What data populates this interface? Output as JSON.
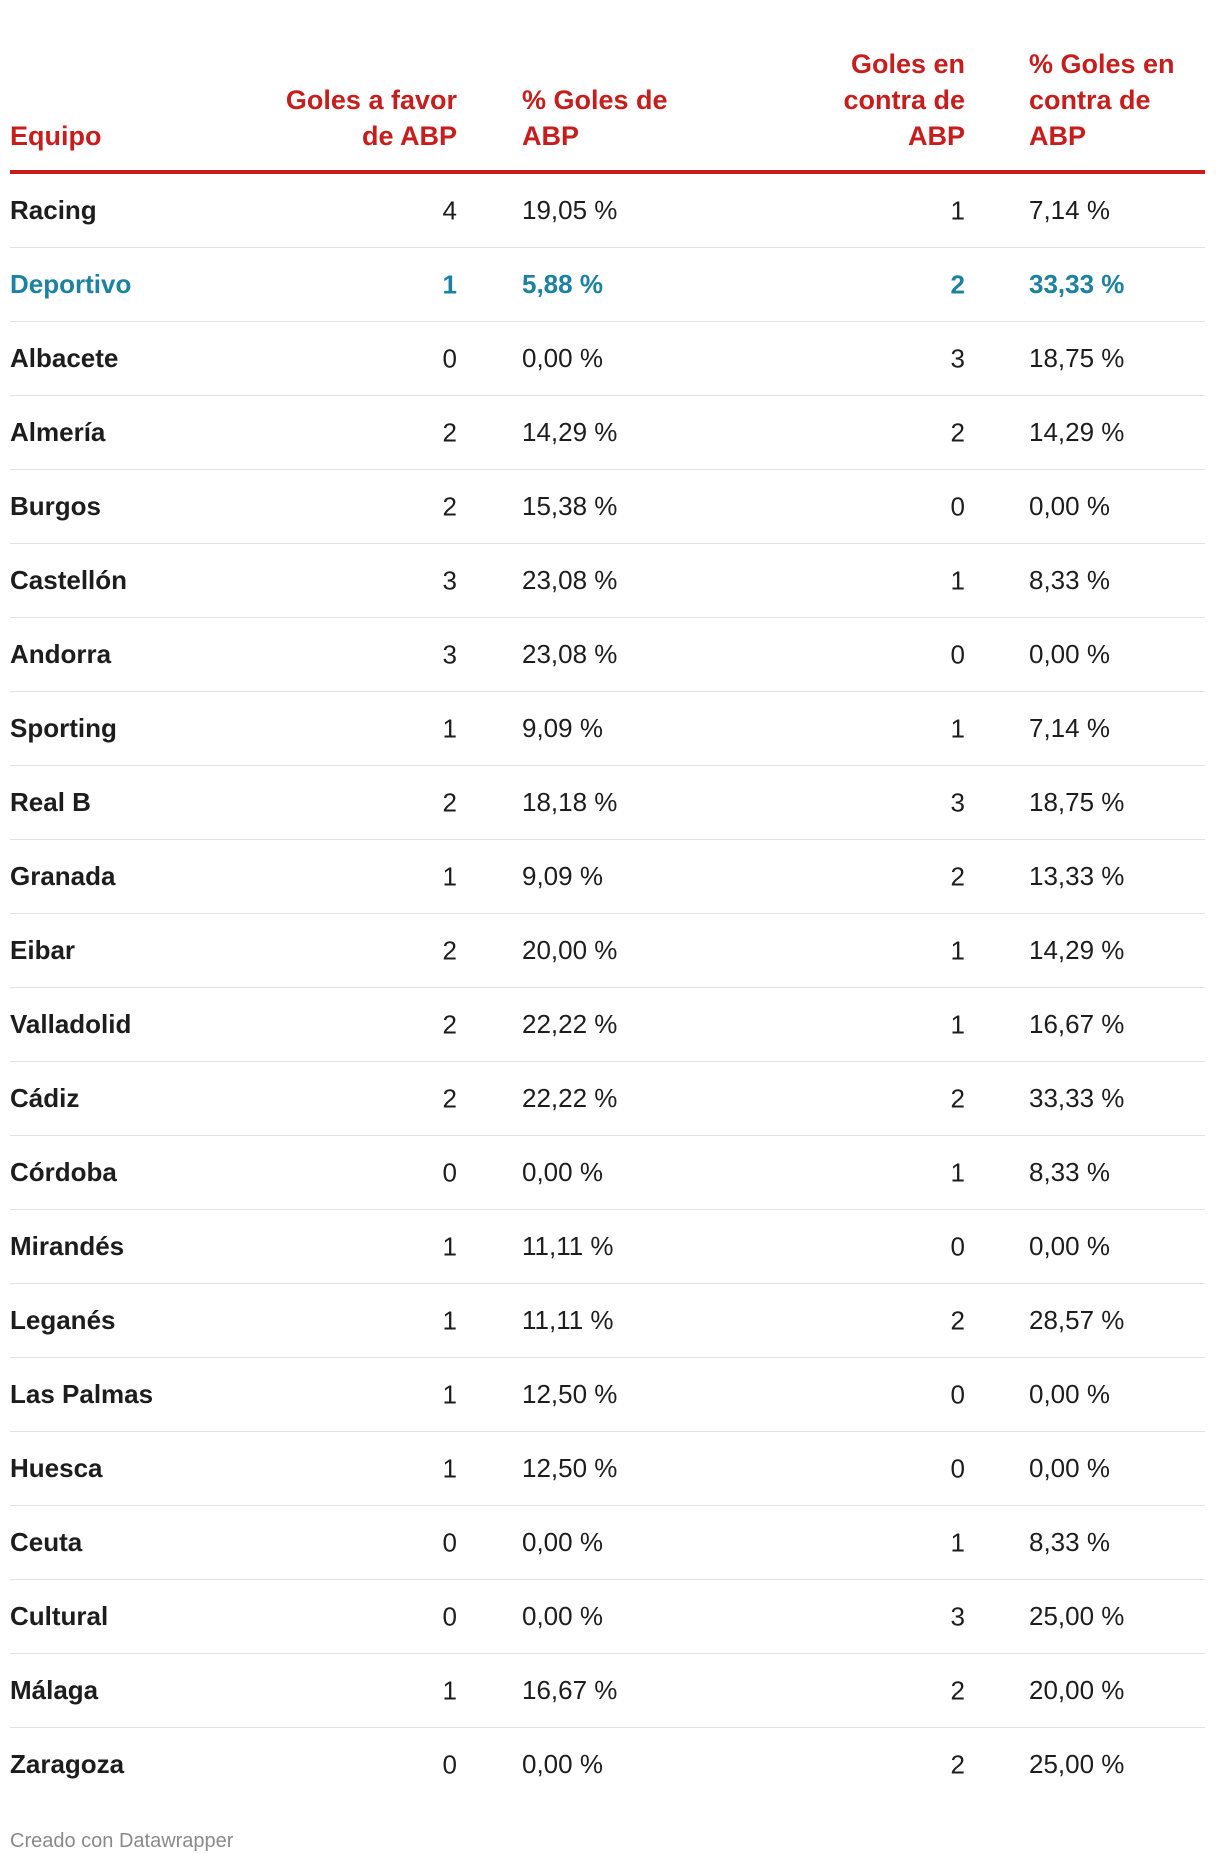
{
  "table": {
    "headers": [
      "Equipo",
      "Goles a favor de ABP",
      "% Goles de ABP",
      "Goles en contra de ABP",
      "% Goles en contra de ABP"
    ],
    "highlight_row": "Deportivo",
    "colors": {
      "header": "#c71e1d",
      "highlight": "#1d81a2"
    },
    "rows": [
      [
        "Racing",
        "4",
        "19,05 %",
        "1",
        "7,14 %"
      ],
      [
        "Deportivo",
        "1",
        "5,88 %",
        "2",
        "33,33 %"
      ],
      [
        "Albacete",
        "0",
        "0,00 %",
        "3",
        "18,75 %"
      ],
      [
        "Almería",
        "2",
        "14,29 %",
        "2",
        "14,29 %"
      ],
      [
        "Burgos",
        "2",
        "15,38 %",
        "0",
        "0,00 %"
      ],
      [
        "Castellón",
        "3",
        "23,08 %",
        "1",
        "8,33 %"
      ],
      [
        "Andorra",
        "3",
        "23,08 %",
        "0",
        "0,00 %"
      ],
      [
        "Sporting",
        "1",
        "9,09 %",
        "1",
        "7,14 %"
      ],
      [
        "Real B",
        "2",
        "18,18 %",
        "3",
        "18,75 %"
      ],
      [
        "Granada",
        "1",
        "9,09 %",
        "2",
        "13,33 %"
      ],
      [
        "Eibar",
        "2",
        "20,00 %",
        "1",
        "14,29 %"
      ],
      [
        "Valladolid",
        "2",
        "22,22 %",
        "1",
        "16,67 %"
      ],
      [
        "Cádiz",
        "2",
        "22,22 %",
        "2",
        "33,33 %"
      ],
      [
        "Córdoba",
        "0",
        "0,00 %",
        "1",
        "8,33 %"
      ],
      [
        "Mirandés",
        "1",
        "11,11 %",
        "0",
        "0,00 %"
      ],
      [
        "Leganés",
        "1",
        "11,11 %",
        "2",
        "28,57 %"
      ],
      [
        "Las Palmas",
        "1",
        "12,50 %",
        "0",
        "0,00 %"
      ],
      [
        "Huesca",
        "1",
        "12,50 %",
        "0",
        "0,00 %"
      ],
      [
        "Ceuta",
        "0",
        "0,00 %",
        "1",
        "8,33 %"
      ],
      [
        "Cultural",
        "0",
        "0,00 %",
        "3",
        "25,00 %"
      ],
      [
        "Málaga",
        "1",
        "16,67 %",
        "2",
        "20,00 %"
      ],
      [
        "Zaragoza",
        "0",
        "0,00 %",
        "2",
        "25,00 %"
      ]
    ]
  },
  "footer": "Creado con Datawrapper"
}
